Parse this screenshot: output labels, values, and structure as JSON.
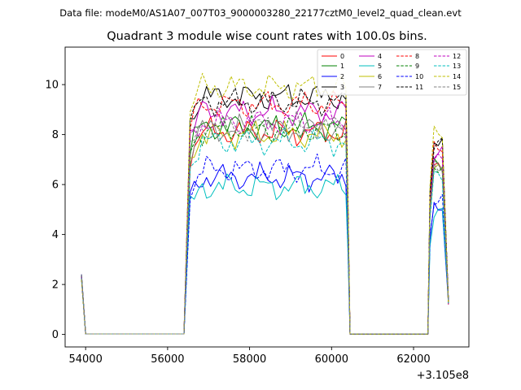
{
  "supertitle": "Data file: modeM0/AS1A07_007T03_9000003280_22177cztM0_level2_quad_clean.evt",
  "chart_data": {
    "type": "line",
    "title": "Quadrant 3 module wise count rates with 100.0s bins.",
    "xlabel": "",
    "ylabel": "",
    "x_offset_label": "+3.105e8",
    "xlim": [
      53500,
      63350
    ],
    "ylim": [
      -0.5,
      11.5
    ],
    "x_ticks": [
      54000,
      56000,
      58000,
      60000,
      62000
    ],
    "x_tick_labels": [
      "54000",
      "56000",
      "58000",
      "60000",
      "62000"
    ],
    "y_ticks": [
      0,
      2,
      4,
      6,
      8,
      10
    ],
    "y_tick_labels": [
      "0",
      "2",
      "4",
      "6",
      "8",
      "10"
    ],
    "grid": false,
    "legend_placement": "top-right",
    "legend_columns": 4,
    "time_segments": [
      {
        "start": 53900,
        "end": 56450,
        "level": "start-then-zero",
        "start_value": 2.4
      },
      {
        "start": 56450,
        "end": 60450,
        "level": "active"
      },
      {
        "start": 60450,
        "end": 62350,
        "level": "zero"
      },
      {
        "start": 62350,
        "end": 62850,
        "level": "active",
        "end_value": 1.2
      }
    ],
    "series": [
      {
        "name": "0",
        "color": "#ff0000",
        "dash": false,
        "base": 8.1
      },
      {
        "name": "1",
        "color": "#008000",
        "dash": false,
        "base": 8.3
      },
      {
        "name": "2",
        "color": "#0000ff",
        "dash": false,
        "base": 6.3
      },
      {
        "name": "3",
        "color": "#000000",
        "dash": false,
        "base": 9.5
      },
      {
        "name": "4",
        "color": "#bf00bf",
        "dash": false,
        "base": 8.9
      },
      {
        "name": "5",
        "color": "#00bfbf",
        "dash": false,
        "base": 5.9
      },
      {
        "name": "6",
        "color": "#bfbf00",
        "dash": false,
        "base": 8.0
      },
      {
        "name": "7",
        "color": "#808080",
        "dash": false,
        "base": 8.2
      },
      {
        "name": "8",
        "color": "#ff0000",
        "dash": true,
        "base": 9.2
      },
      {
        "name": "9",
        "color": "#008000",
        "dash": true,
        "base": 8.2
      },
      {
        "name": "10",
        "color": "#0000ff",
        "dash": true,
        "base": 6.6
      },
      {
        "name": "11",
        "color": "#000000",
        "dash": true,
        "base": 9.3
      },
      {
        "name": "12",
        "color": "#bf00bf",
        "dash": true,
        "base": 8.5
      },
      {
        "name": "13",
        "color": "#00bfbf",
        "dash": true,
        "base": 7.7
      },
      {
        "name": "14",
        "color": "#bfbf00",
        "dash": true,
        "base": 9.9
      },
      {
        "name": "15",
        "color": "#808080",
        "dash": true,
        "base": 8.3
      }
    ]
  }
}
